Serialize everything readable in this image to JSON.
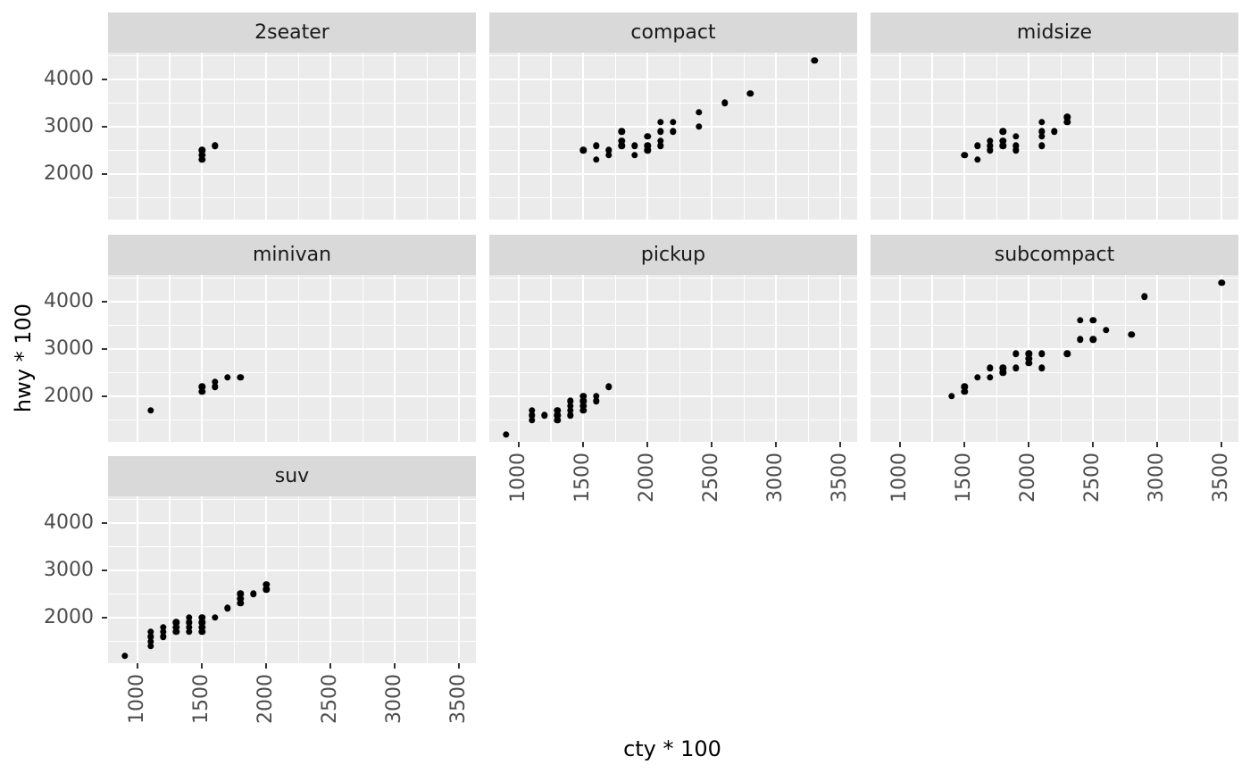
{
  "chart_data": {
    "type": "scatter",
    "title": "",
    "xlabel": "cty * 100",
    "ylabel": "hwy * 100",
    "xlim": [
      770,
      3630
    ],
    "ylim": [
      1040,
      4560
    ],
    "x_major_ticks": [
      1000,
      1500,
      2000,
      2500,
      3000,
      3500
    ],
    "x_minor_ticks": [
      1250,
      1750,
      2250,
      2750,
      3250
    ],
    "y_major_ticks": [
      2000,
      3000,
      4000
    ],
    "y_minor_ticks": [
      1500,
      2500,
      3500,
      4500
    ],
    "grid": true,
    "legend": "none",
    "point_color": "#000000",
    "panel_background": "#EBEBEB",
    "strip_background": "#D9D9D9",
    "grid_color": "#FFFFFF",
    "tick_text_color": "#4D4D4D",
    "strip_text_color": "#1A1A1A",
    "facets": [
      {
        "label": "2seater",
        "points": [
          [
            1500,
            2300
          ],
          [
            1500,
            2400
          ],
          [
            1500,
            2500
          ],
          [
            1600,
            2600
          ],
          [
            1600,
            2600
          ]
        ]
      },
      {
        "label": "compact",
        "points": [
          [
            1500,
            2500
          ],
          [
            1600,
            2300
          ],
          [
            1600,
            2600
          ],
          [
            1700,
            2400
          ],
          [
            1700,
            2500
          ],
          [
            1800,
            2600
          ],
          [
            1800,
            2700
          ],
          [
            1800,
            2900
          ],
          [
            1900,
            2400
          ],
          [
            1900,
            2600
          ],
          [
            2000,
            2500
          ],
          [
            2000,
            2600
          ],
          [
            2000,
            2800
          ],
          [
            2100,
            2600
          ],
          [
            2100,
            2700
          ],
          [
            2100,
            2900
          ],
          [
            2100,
            3100
          ],
          [
            2200,
            2900
          ],
          [
            2200,
            3100
          ],
          [
            2400,
            3000
          ],
          [
            2400,
            3300
          ],
          [
            2600,
            3500
          ],
          [
            2800,
            3700
          ],
          [
            3300,
            4400
          ]
        ]
      },
      {
        "label": "midsize",
        "points": [
          [
            1500,
            2400
          ],
          [
            1600,
            2300
          ],
          [
            1600,
            2600
          ],
          [
            1700,
            2500
          ],
          [
            1700,
            2600
          ],
          [
            1700,
            2700
          ],
          [
            1800,
            2600
          ],
          [
            1800,
            2700
          ],
          [
            1800,
            2900
          ],
          [
            1900,
            2500
          ],
          [
            1900,
            2600
          ],
          [
            1900,
            2800
          ],
          [
            2100,
            2600
          ],
          [
            2100,
            2800
          ],
          [
            2100,
            2900
          ],
          [
            2100,
            3100
          ],
          [
            2200,
            2900
          ],
          [
            2300,
            3100
          ],
          [
            2300,
            3200
          ]
        ]
      },
      {
        "label": "minivan",
        "points": [
          [
            1100,
            1700
          ],
          [
            1500,
            2100
          ],
          [
            1500,
            2200
          ],
          [
            1600,
            2200
          ],
          [
            1600,
            2300
          ],
          [
            1700,
            2400
          ],
          [
            1800,
            2400
          ]
        ]
      },
      {
        "label": "pickup",
        "points": [
          [
            900,
            1200
          ],
          [
            1100,
            1500
          ],
          [
            1100,
            1600
          ],
          [
            1100,
            1700
          ],
          [
            1200,
            1600
          ],
          [
            1300,
            1500
          ],
          [
            1300,
            1600
          ],
          [
            1300,
            1700
          ],
          [
            1400,
            1600
          ],
          [
            1400,
            1700
          ],
          [
            1400,
            1800
          ],
          [
            1400,
            1900
          ],
          [
            1500,
            1700
          ],
          [
            1500,
            1800
          ],
          [
            1500,
            1900
          ],
          [
            1500,
            2000
          ],
          [
            1600,
            1900
          ],
          [
            1600,
            2000
          ],
          [
            1700,
            2200
          ]
        ]
      },
      {
        "label": "subcompact",
        "points": [
          [
            1400,
            2000
          ],
          [
            1500,
            2100
          ],
          [
            1500,
            2200
          ],
          [
            1600,
            2400
          ],
          [
            1700,
            2400
          ],
          [
            1700,
            2600
          ],
          [
            1800,
            2500
          ],
          [
            1800,
            2600
          ],
          [
            1900,
            2600
          ],
          [
            1900,
            2900
          ],
          [
            2000,
            2700
          ],
          [
            2000,
            2800
          ],
          [
            2000,
            2900
          ],
          [
            2100,
            2600
          ],
          [
            2100,
            2900
          ],
          [
            2300,
            2900
          ],
          [
            2400,
            3200
          ],
          [
            2400,
            3600
          ],
          [
            2500,
            3200
          ],
          [
            2500,
            3600
          ],
          [
            2600,
            3400
          ],
          [
            2800,
            3300
          ],
          [
            2900,
            4100
          ],
          [
            3500,
            4400
          ]
        ]
      },
      {
        "label": "suv",
        "points": [
          [
            900,
            1200
          ],
          [
            1100,
            1400
          ],
          [
            1100,
            1500
          ],
          [
            1100,
            1600
          ],
          [
            1100,
            1700
          ],
          [
            1200,
            1600
          ],
          [
            1200,
            1700
          ],
          [
            1200,
            1800
          ],
          [
            1300,
            1700
          ],
          [
            1300,
            1800
          ],
          [
            1300,
            1900
          ],
          [
            1400,
            1700
          ],
          [
            1400,
            1800
          ],
          [
            1400,
            1900
          ],
          [
            1400,
            2000
          ],
          [
            1500,
            1700
          ],
          [
            1500,
            1800
          ],
          [
            1500,
            1900
          ],
          [
            1500,
            2000
          ],
          [
            1600,
            2000
          ],
          [
            1700,
            2200
          ],
          [
            1800,
            2300
          ],
          [
            1800,
            2400
          ],
          [
            1800,
            2500
          ],
          [
            1900,
            2500
          ],
          [
            2000,
            2600
          ],
          [
            2000,
            2700
          ]
        ]
      }
    ]
  }
}
